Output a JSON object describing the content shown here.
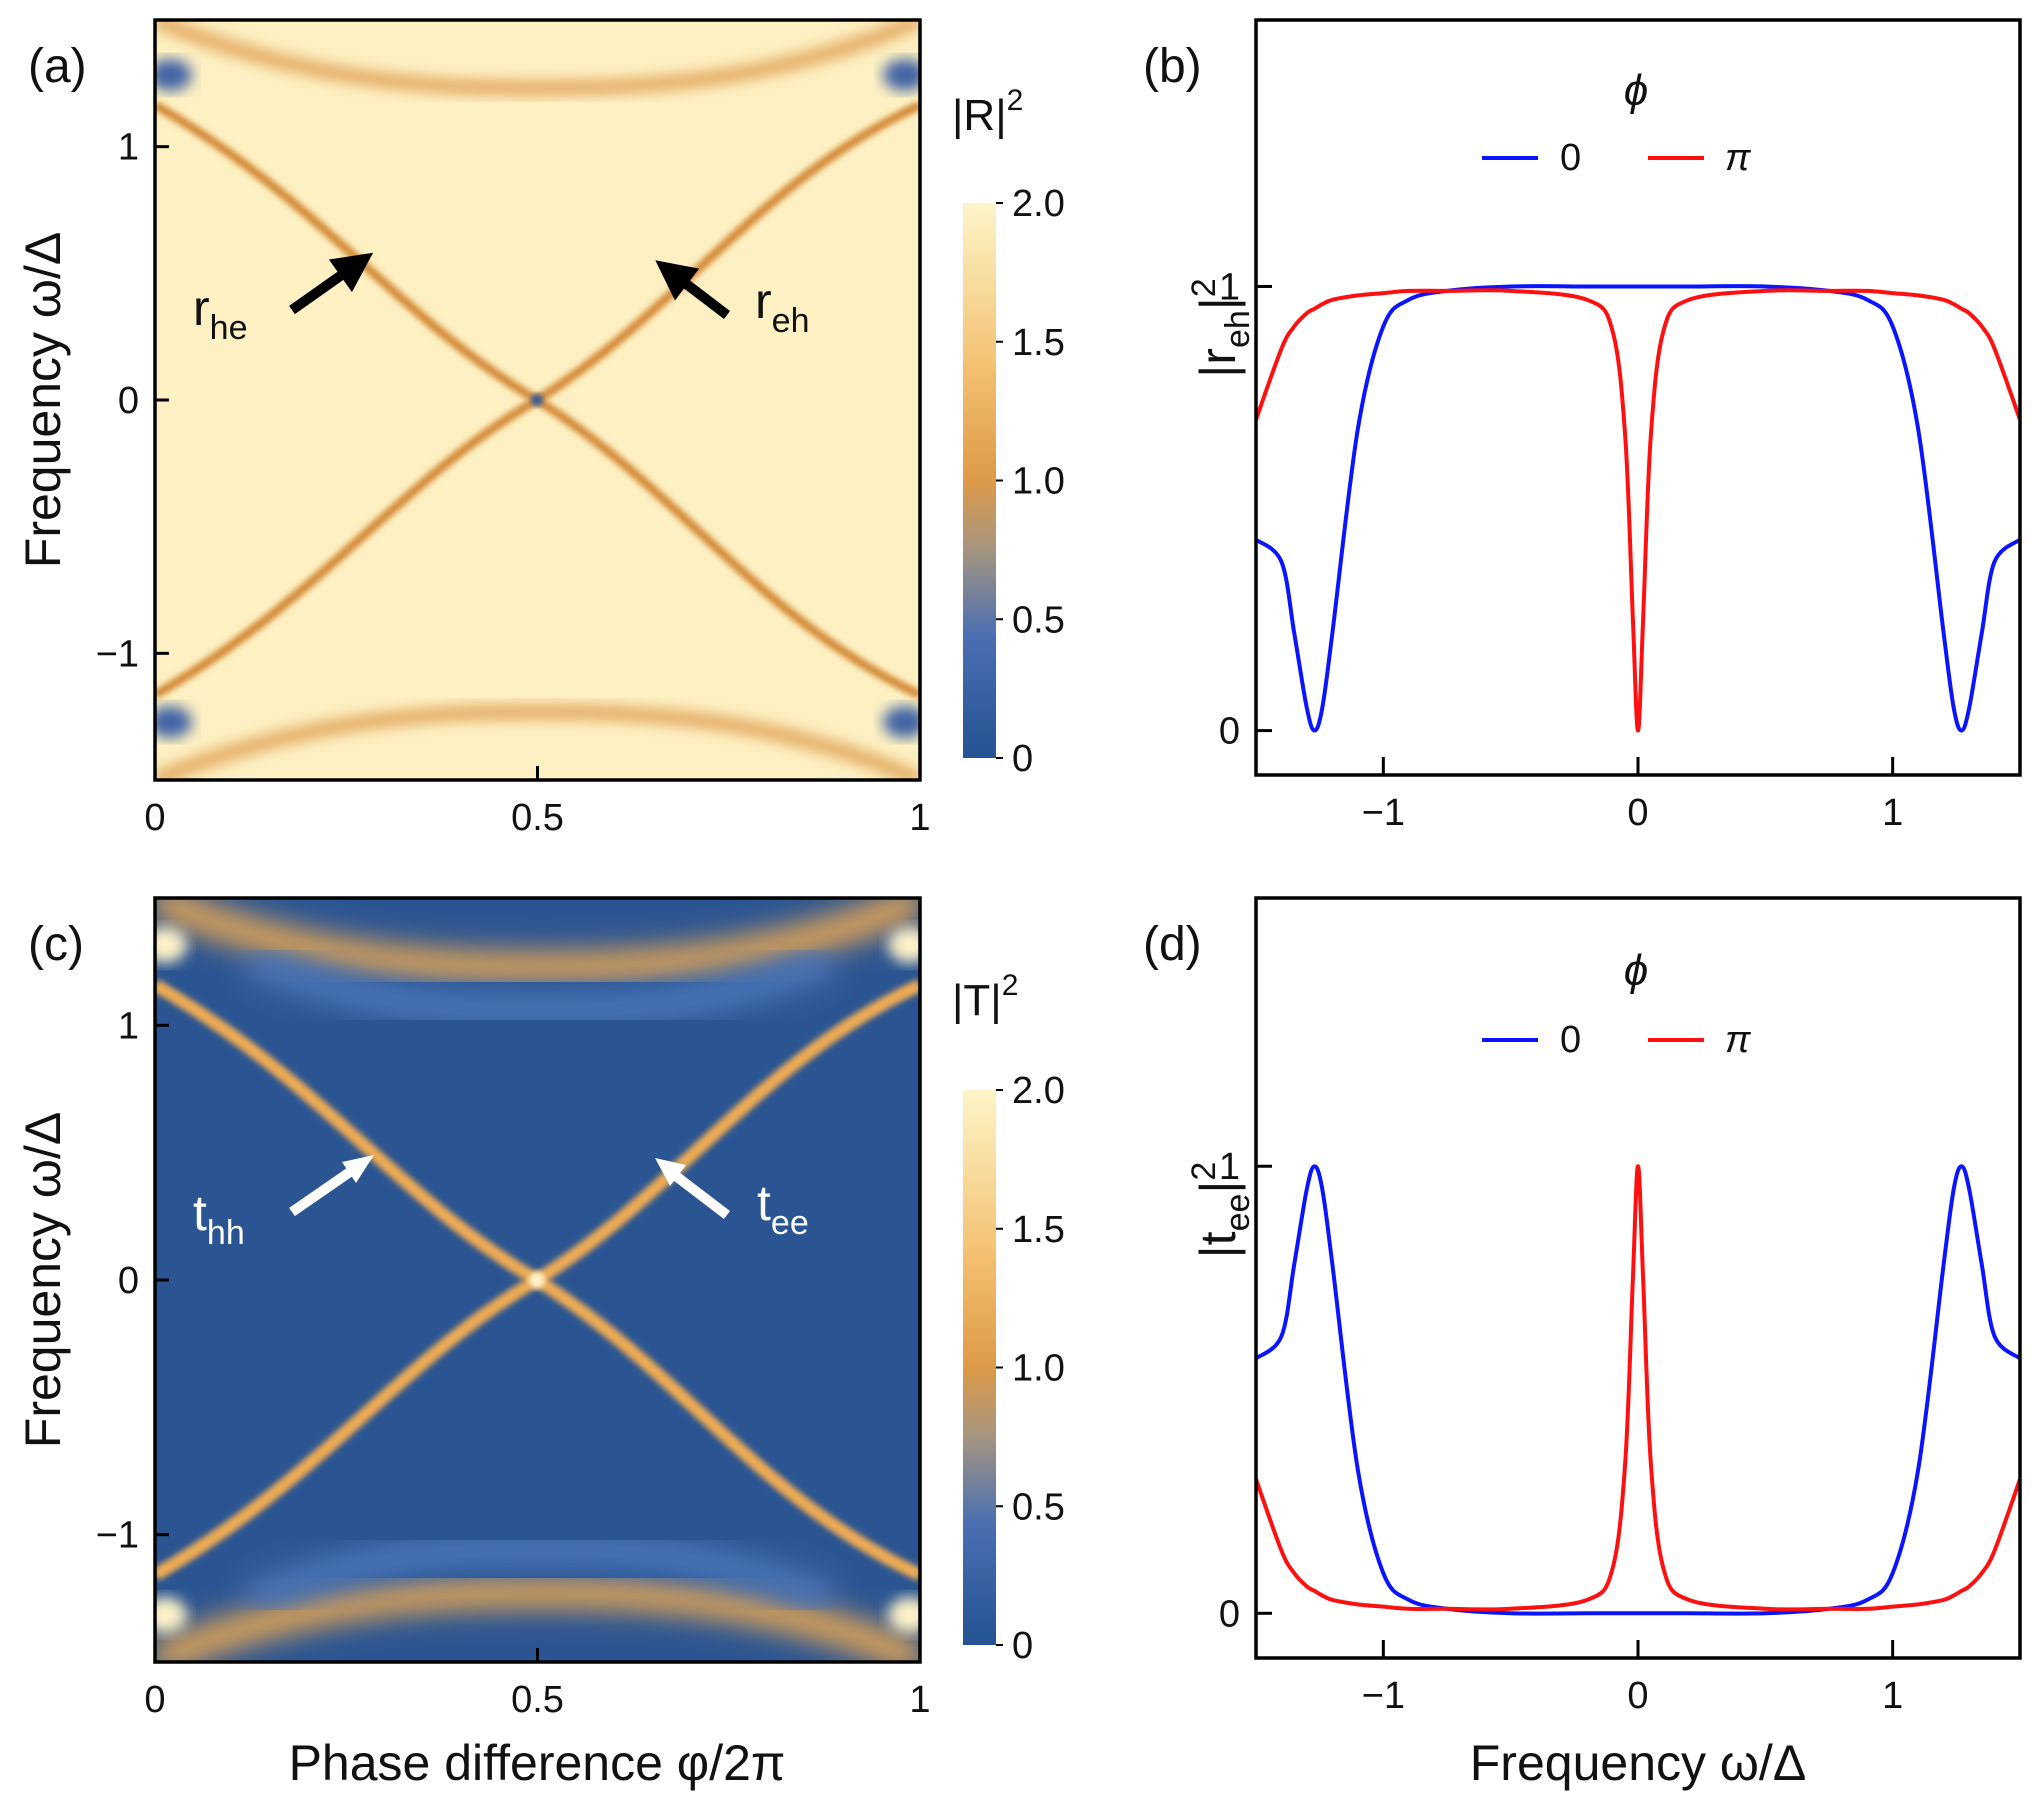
{
  "figure": {
    "panel_labels": [
      "(a)",
      "(b)",
      "(c)",
      "(d)"
    ],
    "axis_label_frequency": "Frequency ω/Δ",
    "axis_label_phase": "Phase difference φ/2π"
  },
  "chart_data": [
    {
      "panel": "(a)",
      "type": "heatmap",
      "quantity": "|R|^2",
      "colorbar_title": "|R|",
      "colorbar_title_sup": "2",
      "colorbar_range": [
        0,
        2
      ],
      "colorbar_ticks": [
        "2.0",
        "1.5",
        "1.0",
        "0.5",
        "0"
      ],
      "xlabel": "",
      "ylabel": "Frequency ω/Δ",
      "xlim": [
        0,
        1
      ],
      "ylim": [
        -1.5,
        1.5
      ],
      "x_ticks": [
        "0",
        "0.5",
        "1"
      ],
      "y_ticks": [
        "1",
        "0",
        "−1"
      ],
      "background_value": 1.9,
      "features": "curved bands ω = ±cos(πφ/2π)-like crossing at (0.5, 0); value ≈1 along bands, ≈0 at crossing and at corners near ω = ±1.25",
      "annotations": [
        {
          "base": "r",
          "sub": "he",
          "target": [
            0.29,
            0.55
          ]
        },
        {
          "base": "r",
          "sub": "eh",
          "target": [
            0.66,
            0.55
          ]
        }
      ]
    },
    {
      "panel": "(b)",
      "type": "line",
      "xlabel": "",
      "ylabel": "|r_eh|^2",
      "ylabel_base": "|r",
      "ylabel_sub": "eh",
      "ylabel_end": "|",
      "ylabel_sup": "2",
      "xlim": [
        -1.5,
        1.5
      ],
      "ylim": [
        -0.1,
        1.6
      ],
      "x_ticks": [
        "−1",
        "0",
        "1"
      ],
      "y_ticks": [
        "0",
        "1"
      ],
      "legend_title": "ϕ",
      "x": [
        -1.5,
        -1.4,
        -1.35,
        -1.3,
        -1.27,
        -1.24,
        -1.2,
        -1.1,
        -1.0,
        -0.9,
        -0.75,
        -0.5,
        -0.2,
        -0.1,
        -0.05,
        -0.02,
        0,
        0.02,
        0.05,
        0.1,
        0.2,
        0.5,
        0.75,
        0.9,
        1.0,
        1.1,
        1.2,
        1.24,
        1.27,
        1.3,
        1.35,
        1.4,
        1.5
      ],
      "series": [
        {
          "name": "0",
          "color": "#0a14ff",
          "values": [
            0.43,
            0.38,
            0.22,
            0.05,
            0.0,
            0.05,
            0.22,
            0.68,
            0.91,
            0.97,
            0.99,
            1.0,
            1.0,
            1.0,
            1.0,
            1.0,
            1.0,
            1.0,
            1.0,
            1.0,
            1.0,
            1.0,
            0.99,
            0.97,
            0.91,
            0.68,
            0.22,
            0.05,
            0.0,
            0.05,
            0.22,
            0.38,
            0.43
          ]
        },
        {
          "name": "π",
          "color": "#ff1010",
          "values": [
            0.7,
            0.86,
            0.91,
            0.94,
            0.95,
            0.96,
            0.97,
            0.98,
            0.985,
            0.99,
            0.99,
            0.99,
            0.97,
            0.9,
            0.66,
            0.25,
            0.0,
            0.25,
            0.66,
            0.9,
            0.97,
            0.99,
            0.99,
            0.99,
            0.985,
            0.98,
            0.97,
            0.96,
            0.95,
            0.94,
            0.91,
            0.86,
            0.7
          ]
        }
      ]
    },
    {
      "panel": "(c)",
      "type": "heatmap",
      "quantity": "|T|^2",
      "colorbar_title": "|T|",
      "colorbar_title_sup": "2",
      "colorbar_range": [
        0,
        2
      ],
      "colorbar_ticks": [
        "2.0",
        "1.5",
        "1.0",
        "0.5",
        "0"
      ],
      "xlabel": "Phase difference φ/2π",
      "ylabel": "Frequency ω/Δ",
      "xlim": [
        0,
        1
      ],
      "ylim": [
        -1.5,
        1.5
      ],
      "x_ticks": [
        "0",
        "0.5",
        "1"
      ],
      "y_ticks": [
        "1",
        "0",
        "−1"
      ],
      "background_value": 0.05,
      "features": "bright bands (≈1) along the same crossing curves, peak ≈2 at crossing (0.5, 0) and at corners near ω = ±1.25",
      "annotations": [
        {
          "base": "t",
          "sub": "hh",
          "target": [
            0.29,
            0.55
          ]
        },
        {
          "base": "t",
          "sub": "ee",
          "target": [
            0.66,
            0.55
          ]
        }
      ]
    },
    {
      "panel": "(d)",
      "type": "line",
      "xlabel": "Frequency ω/Δ",
      "ylabel": "|t_ee|^2",
      "ylabel_base": "|t",
      "ylabel_sub": "ee",
      "ylabel_end": "|",
      "ylabel_sup": "2",
      "xlim": [
        -1.5,
        1.5
      ],
      "ylim": [
        -0.1,
        1.6
      ],
      "x_ticks": [
        "−1",
        "0",
        "1"
      ],
      "y_ticks": [
        "0",
        "1"
      ],
      "legend_title": "ϕ",
      "x": [
        -1.5,
        -1.4,
        -1.35,
        -1.3,
        -1.27,
        -1.24,
        -1.2,
        -1.1,
        -1.0,
        -0.9,
        -0.75,
        -0.5,
        -0.2,
        -0.1,
        -0.05,
        -0.02,
        0,
        0.02,
        0.05,
        0.1,
        0.2,
        0.5,
        0.75,
        0.9,
        1.0,
        1.1,
        1.2,
        1.24,
        1.27,
        1.3,
        1.35,
        1.4,
        1.5
      ],
      "series": [
        {
          "name": "0",
          "color": "#0a14ff",
          "values": [
            0.57,
            0.62,
            0.78,
            0.95,
            1.0,
            0.95,
            0.78,
            0.32,
            0.09,
            0.03,
            0.01,
            0.0,
            0.0,
            0.0,
            0.0,
            0.0,
            0.0,
            0.0,
            0.0,
            0.0,
            0.0,
            0.0,
            0.01,
            0.03,
            0.09,
            0.32,
            0.78,
            0.95,
            1.0,
            0.95,
            0.78,
            0.62,
            0.57
          ]
        },
        {
          "name": "π",
          "color": "#ff1010",
          "values": [
            0.3,
            0.14,
            0.09,
            0.06,
            0.05,
            0.04,
            0.03,
            0.02,
            0.015,
            0.01,
            0.01,
            0.01,
            0.03,
            0.1,
            0.34,
            0.75,
            1.0,
            0.75,
            0.34,
            0.1,
            0.03,
            0.01,
            0.01,
            0.01,
            0.015,
            0.02,
            0.03,
            0.04,
            0.05,
            0.06,
            0.09,
            0.14,
            0.3
          ]
        }
      ]
    }
  ]
}
